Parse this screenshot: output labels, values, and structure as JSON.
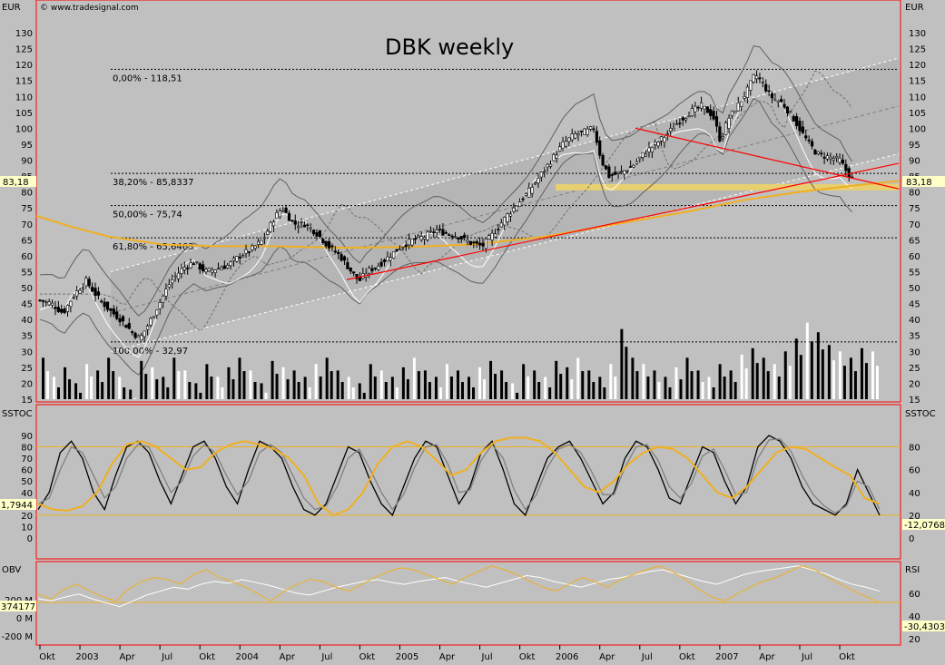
{
  "colors": {
    "background": "#c0c0c0",
    "panel_border": "#ff0000",
    "candle": "#000000",
    "fib_line": "#000000",
    "channel_fill": "#b0b0b0",
    "trend_red": "#ff0000",
    "ma_orange": "#f0b020",
    "bollinger": "#606060",
    "white_line": "#ffffff",
    "support_band": "#e8d070",
    "price_badge": "#ffffc8"
  },
  "header": {
    "currency_left": "EUR",
    "currency_right": "EUR",
    "copyright": "© www.tradesignal.com",
    "title": "DBK weekly"
  },
  "chart_data": [
    {
      "type": "candlestick",
      "title": "DBK weekly",
      "ylabel": "EUR",
      "ylim": [
        15,
        135
      ],
      "y_ticks": [
        15,
        20,
        25,
        30,
        35,
        40,
        45,
        50,
        55,
        60,
        65,
        70,
        75,
        80,
        85,
        90,
        95,
        100,
        105,
        110,
        115,
        120,
        125,
        130
      ],
      "current_price_label": "83,18",
      "fibonacci_levels": [
        {
          "label": "0,00% - 118,51",
          "value": 118.51
        },
        {
          "label": "38,20% - 85,8337",
          "value": 85.8337
        },
        {
          "label": "50,00% - 75,74",
          "value": 75.74
        },
        {
          "label": "61,80% - 65,6463",
          "value": 65.6463
        },
        {
          "label": "100,00% - 32,97",
          "value": 32.97
        }
      ],
      "support_band": [
        80.5,
        82.5
      ],
      "close_series": [
        [
          0,
          46
        ],
        [
          3,
          45
        ],
        [
          6,
          42
        ],
        [
          9,
          48
        ],
        [
          12,
          52
        ],
        [
          15,
          47
        ],
        [
          18,
          43
        ],
        [
          21,
          40
        ],
        [
          24,
          36
        ],
        [
          26,
          34
        ],
        [
          28,
          38
        ],
        [
          31,
          45
        ],
        [
          34,
          52
        ],
        [
          37,
          56
        ],
        [
          40,
          58
        ],
        [
          43,
          55
        ],
        [
          46,
          56
        ],
        [
          49,
          57
        ],
        [
          52,
          60
        ],
        [
          55,
          62
        ],
        [
          58,
          65
        ],
        [
          61,
          72
        ],
        [
          63,
          75
        ],
        [
          66,
          70
        ],
        [
          69,
          70
        ],
        [
          72,
          67
        ],
        [
          75,
          63
        ],
        [
          78,
          60
        ],
        [
          81,
          55
        ],
        [
          83,
          52
        ],
        [
          85,
          55
        ],
        [
          88,
          57
        ],
        [
          91,
          60
        ],
        [
          94,
          63
        ],
        [
          97,
          65
        ],
        [
          100,
          66
        ],
        [
          103,
          68
        ],
        [
          106,
          67
        ],
        [
          109,
          66
        ],
        [
          112,
          64
        ],
        [
          115,
          63
        ],
        [
          118,
          67
        ],
        [
          121,
          72
        ],
        [
          124,
          76
        ],
        [
          127,
          80
        ],
        [
          130,
          85
        ],
        [
          133,
          90
        ],
        [
          136,
          95
        ],
        [
          139,
          98
        ],
        [
          142,
          99
        ],
        [
          144,
          100
        ],
        [
          146,
          90
        ],
        [
          148,
          85
        ],
        [
          151,
          86
        ],
        [
          154,
          88
        ],
        [
          157,
          92
        ],
        [
          160,
          95
        ],
        [
          163,
          98
        ],
        [
          166,
          102
        ],
        [
          169,
          105
        ],
        [
          172,
          107
        ],
        [
          175,
          104
        ],
        [
          177,
          96
        ],
        [
          179,
          103
        ],
        [
          182,
          108
        ],
        [
          184,
          112
        ],
        [
          186,
          117
        ],
        [
          188,
          114
        ],
        [
          190,
          110
        ],
        [
          193,
          108
        ],
        [
          196,
          103
        ],
        [
          199,
          97
        ],
        [
          202,
          92
        ],
        [
          205,
          91
        ],
        [
          208,
          90
        ],
        [
          210,
          86
        ],
        [
          212,
          83
        ]
      ],
      "volume": [
        28,
        22,
        25,
        20,
        26,
        24,
        28,
        22,
        18,
        27,
        25,
        22,
        28,
        24,
        20,
        26,
        22,
        25,
        28,
        24,
        20,
        27,
        25,
        24,
        22,
        26,
        28,
        24,
        22,
        20,
        26,
        24,
        22,
        25,
        28,
        24,
        22,
        26,
        24,
        22,
        25,
        27,
        24,
        20,
        26,
        24,
        22,
        27,
        25,
        28,
        24,
        22,
        26,
        37,
        28,
        26,
        24,
        22,
        25,
        28,
        24,
        22,
        26,
        24,
        29,
        31,
        28,
        26,
        30,
        34,
        39,
        36,
        32,
        30,
        28,
        31,
        30
      ],
      "y_range_note": "weekly price, EUR"
    },
    {
      "type": "line",
      "title": "SSTOC",
      "ylim": [
        0,
        100
      ],
      "y_ticks": [
        0,
        10,
        20,
        30,
        40,
        50,
        60,
        70,
        80,
        90
      ],
      "right_ticks": [
        0,
        20,
        40,
        60,
        80
      ],
      "reference_lines": [
        20,
        80
      ],
      "left_badge": "1,7944",
      "right_badge": "-12,0768",
      "series": [
        {
          "values": [
            25,
            40,
            75,
            85,
            70,
            40,
            25,
            55,
            80,
            85,
            75,
            50,
            30,
            55,
            80,
            85,
            70,
            45,
            30,
            60,
            85,
            80,
            70,
            45,
            25,
            20,
            30,
            55,
            80,
            75,
            50,
            30,
            20,
            45,
            70,
            85,
            80,
            55,
            30,
            45,
            75,
            85,
            60,
            30,
            20,
            45,
            70,
            80,
            85,
            70,
            50,
            30,
            40,
            70,
            85,
            80,
            60,
            35,
            30,
            55,
            80,
            75,
            50,
            30,
            45,
            80,
            90,
            85,
            70,
            45,
            30,
            25,
            20,
            30,
            60,
            40,
            20
          ]
        },
        {
          "values": [
            30,
            35,
            60,
            80,
            75,
            55,
            35,
            45,
            70,
            82,
            80,
            60,
            40,
            50,
            72,
            82,
            75,
            55,
            38,
            50,
            75,
            82,
            75,
            55,
            35,
            25,
            28,
            45,
            70,
            78,
            60,
            40,
            25,
            38,
            62,
            80,
            82,
            65,
            40,
            42,
            68,
            82,
            70,
            42,
            25,
            38,
            62,
            78,
            82,
            75,
            58,
            38,
            38,
            62,
            80,
            82,
            68,
            45,
            35,
            48,
            72,
            78,
            60,
            38,
            40,
            70,
            86,
            87,
            76,
            55,
            38,
            28,
            22,
            28,
            50,
            45,
            25
          ]
        },
        {
          "values": [
            30,
            25,
            24,
            28,
            40,
            65,
            82,
            85,
            80,
            70,
            60,
            62,
            75,
            82,
            85,
            82,
            78,
            70,
            55,
            30,
            20,
            25,
            40,
            65,
            80,
            85,
            80,
            68,
            55,
            60,
            75,
            85,
            88,
            88,
            85,
            75,
            60,
            45,
            40,
            50,
            65,
            75,
            80,
            78,
            70,
            55,
            40,
            35,
            45,
            60,
            75,
            80,
            78,
            70,
            62,
            55,
            35,
            30
          ]
        }
      ]
    },
    {
      "type": "line",
      "title": "OBV",
      "right_title": "RSI",
      "left_ticks": [
        "200 M",
        "0 M",
        "-200 M"
      ],
      "right_ticks": [
        20,
        40,
        60
      ],
      "left_badge": "374177",
      "right_badge": "-30,4303",
      "reference_line": 50,
      "series": [
        {
          "name": "OBV",
          "values": [
            40,
            38,
            42,
            45,
            40,
            36,
            32,
            38,
            44,
            48,
            52,
            50,
            55,
            58,
            56,
            60,
            57,
            54,
            50,
            46,
            44,
            48,
            52,
            55,
            58,
            60,
            57,
            55,
            58,
            60,
            62,
            58,
            55,
            52,
            56,
            60,
            64,
            62,
            58,
            55,
            52,
            56,
            60,
            62,
            65,
            68,
            70,
            66,
            62,
            58,
            55,
            60,
            65,
            68,
            70,
            72,
            74,
            70,
            66,
            60,
            55,
            52,
            48
          ]
        },
        {
          "name": "RSI",
          "values": [
            45,
            40,
            50,
            55,
            48,
            42,
            38,
            50,
            58,
            62,
            60,
            55,
            65,
            70,
            62,
            58,
            52,
            45,
            38,
            48,
            55,
            60,
            58,
            52,
            48,
            55,
            62,
            68,
            72,
            70,
            65,
            60,
            55,
            62,
            68,
            74,
            70,
            65,
            58,
            52,
            48,
            55,
            62,
            58,
            52,
            60,
            65,
            70,
            74,
            68,
            60,
            50,
            42,
            38,
            45,
            52,
            58,
            62,
            68,
            74,
            70,
            62,
            55,
            48,
            42,
            36
          ]
        }
      ]
    }
  ],
  "x_axis": {
    "labels": [
      "Okt",
      "2003",
      "Apr",
      "Jul",
      "Okt",
      "2004",
      "Apr",
      "Jul",
      "Okt",
      "2005",
      "Apr",
      "Jul",
      "Okt",
      "2006",
      "Apr",
      "Jul",
      "Okt",
      "2007",
      "Apr",
      "Jul",
      "Okt"
    ],
    "label_weeks": [
      0,
      13,
      26,
      39,
      52,
      65,
      78,
      91,
      104,
      117,
      130,
      143,
      156,
      169,
      182,
      195,
      208,
      221,
      234,
      247,
      260
    ]
  }
}
